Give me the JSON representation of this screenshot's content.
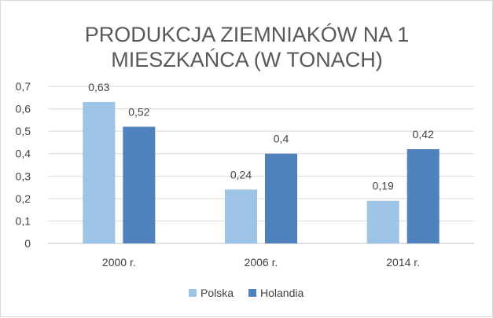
{
  "chart_data": {
    "type": "bar",
    "title": [
      "PRODUKCJA ZIEMNIAKÓW NA 1",
      "MIESZKAŃCA (W TONACH)"
    ],
    "categories": [
      "2000 r.",
      "2006 r.",
      "2014 r."
    ],
    "series": [
      {
        "name": "Polska",
        "values": [
          0.63,
          0.24,
          0.19
        ],
        "color": "#9dc3e6"
      },
      {
        "name": "Holandia",
        "values": [
          0.52,
          0.4,
          0.42
        ],
        "color": "#4f81bd"
      }
    ],
    "data_labels": [
      [
        "0,63",
        "0,24",
        "0,19"
      ],
      [
        "0,52",
        "0,4",
        "0,42"
      ]
    ],
    "y_ticks": [
      "0",
      "0,1",
      "0,2",
      "0,3",
      "0,4",
      "0,5",
      "0,6",
      "0,7"
    ],
    "ylim": [
      0,
      0.7
    ],
    "grid": true,
    "legend_position": "bottom"
  }
}
